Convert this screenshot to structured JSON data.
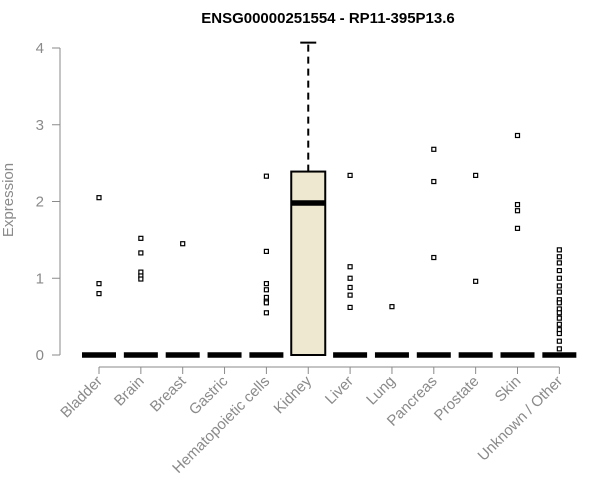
{
  "chart_data": {
    "type": "box",
    "title": "ENSG00000251554 - RP11-395P13.6",
    "xlabel": "",
    "ylabel": "Expression",
    "ylim": [
      0,
      4.1
    ],
    "yticks": [
      0,
      1,
      2,
      3,
      4
    ],
    "grid": false,
    "legend": "none",
    "colors": {
      "box_fill": "#efe8d1",
      "axis": "#8a8a8a",
      "stroke": "#000000"
    },
    "categories": [
      "Bladder",
      "Brain",
      "Breast",
      "Gastric",
      "Hematopoietic cells",
      "Kidney",
      "Liver",
      "Lung",
      "Pancreas",
      "Prostate",
      "Skin",
      "Unknown / Other"
    ],
    "boxes": [
      {
        "category": "Bladder",
        "min": 0,
        "q1": 0,
        "median": 0,
        "q3": 0,
        "max": 0,
        "outliers": [
          2.05,
          0.93,
          0.8
        ]
      },
      {
        "category": "Brain",
        "min": 0,
        "q1": 0,
        "median": 0,
        "q3": 0,
        "max": 0,
        "outliers": [
          1.52,
          1.33,
          1.08,
          1.03,
          0.99
        ]
      },
      {
        "category": "Breast",
        "min": 0,
        "q1": 0,
        "median": 0,
        "q3": 0,
        "max": 0,
        "outliers": [
          1.45
        ]
      },
      {
        "category": "Gastric",
        "min": 0,
        "q1": 0,
        "median": 0,
        "q3": 0,
        "max": 0,
        "outliers": []
      },
      {
        "category": "Hematopoietic cells",
        "min": 0,
        "q1": 0,
        "median": 0,
        "q3": 0,
        "max": 0,
        "outliers": [
          2.33,
          1.35,
          0.93,
          0.85,
          0.75,
          0.7,
          0.68,
          0.55
        ]
      },
      {
        "category": "Kidney",
        "min": 0,
        "q1": 0,
        "median": 1.98,
        "q3": 2.39,
        "max": 4.07,
        "outliers": []
      },
      {
        "category": "Liver",
        "min": 0,
        "q1": 0,
        "median": 0,
        "q3": 0,
        "max": 0,
        "outliers": [
          2.34,
          1.15,
          1.0,
          0.88,
          0.78,
          0.62
        ]
      },
      {
        "category": "Lung",
        "min": 0,
        "q1": 0,
        "median": 0,
        "q3": 0,
        "max": 0,
        "outliers": [
          0.63
        ]
      },
      {
        "category": "Pancreas",
        "min": 0,
        "q1": 0,
        "median": 0,
        "q3": 0,
        "max": 0,
        "outliers": [
          2.68,
          2.26,
          1.27
        ]
      },
      {
        "category": "Prostate",
        "min": 0,
        "q1": 0,
        "median": 0,
        "q3": 0,
        "max": 0,
        "outliers": [
          2.34,
          0.96
        ]
      },
      {
        "category": "Skin",
        "min": 0,
        "q1": 0,
        "median": 0,
        "q3": 0,
        "max": 0,
        "outliers": [
          2.86,
          1.96,
          1.88,
          1.65
        ]
      },
      {
        "category": "Unknown / Other",
        "min": 0,
        "q1": 0,
        "median": 0,
        "q3": 0,
        "max": 0,
        "outliers": [
          1.37,
          1.28,
          1.2,
          1.1,
          1.0,
          0.9,
          0.82,
          0.72,
          0.68,
          0.6,
          0.55,
          0.48,
          0.4,
          0.33,
          0.28,
          0.18,
          0.08
        ]
      }
    ]
  }
}
